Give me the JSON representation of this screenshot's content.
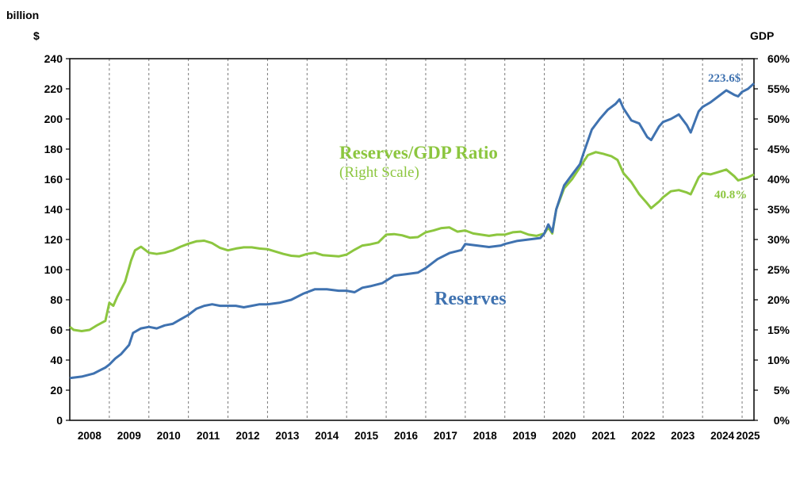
{
  "chart_data": {
    "type": "line",
    "left_axis": {
      "unit_line1": "billion",
      "unit_line2": "$",
      "ylim": [
        0,
        240
      ],
      "ticks": [
        "0",
        "20",
        "40",
        "60",
        "80",
        "100",
        "120",
        "140",
        "160",
        "180",
        "200",
        "220",
        "240"
      ]
    },
    "right_axis": {
      "unit": "GDP",
      "ylim": [
        0,
        60
      ],
      "ticks": [
        "0%",
        "5%",
        "10%",
        "15%",
        "20%",
        "25%",
        "30%",
        "35%",
        "40%",
        "45%",
        "50%",
        "55%",
        "60%"
      ]
    },
    "x_years": [
      "2008",
      "2009",
      "2010",
      "2011",
      "2012",
      "2013",
      "2014",
      "2015",
      "2016",
      "2017",
      "2018",
      "2019",
      "2020",
      "2021",
      "2022",
      "2023",
      "2024",
      "2025"
    ],
    "xlim": [
      2008.0,
      2025.3
    ],
    "colors": {
      "reserves": "#3f72b0",
      "ratio": "#8cc63f",
      "gridline": "#7a7a7a"
    },
    "series": [
      {
        "name": "Reserves",
        "axis": "left",
        "points": [
          [
            2008.0,
            28
          ],
          [
            2008.3,
            29
          ],
          [
            2008.6,
            31
          ],
          [
            2008.9,
            35
          ],
          [
            2009.0,
            37
          ],
          [
            2009.15,
            41
          ],
          [
            2009.3,
            44
          ],
          [
            2009.5,
            50
          ],
          [
            2009.6,
            58
          ],
          [
            2009.8,
            61
          ],
          [
            2010.0,
            62
          ],
          [
            2010.2,
            61
          ],
          [
            2010.4,
            63
          ],
          [
            2010.6,
            64
          ],
          [
            2010.8,
            67
          ],
          [
            2011.0,
            70
          ],
          [
            2011.2,
            74
          ],
          [
            2011.4,
            76
          ],
          [
            2011.6,
            77
          ],
          [
            2011.8,
            76
          ],
          [
            2012.0,
            76
          ],
          [
            2012.2,
            76
          ],
          [
            2012.4,
            75
          ],
          [
            2012.6,
            76
          ],
          [
            2012.8,
            77
          ],
          [
            2013.0,
            77
          ],
          [
            2013.3,
            78
          ],
          [
            2013.6,
            80
          ],
          [
            2013.9,
            84
          ],
          [
            2014.2,
            87
          ],
          [
            2014.5,
            87
          ],
          [
            2014.8,
            86
          ],
          [
            2015.0,
            86
          ],
          [
            2015.2,
            85
          ],
          [
            2015.4,
            88
          ],
          [
            2015.6,
            89
          ],
          [
            2015.9,
            91
          ],
          [
            2016.2,
            96
          ],
          [
            2016.5,
            97
          ],
          [
            2016.8,
            98
          ],
          [
            2017.0,
            101
          ],
          [
            2017.3,
            107
          ],
          [
            2017.6,
            111
          ],
          [
            2017.9,
            113
          ],
          [
            2018.0,
            117
          ],
          [
            2018.3,
            116
          ],
          [
            2018.6,
            115
          ],
          [
            2018.9,
            116
          ],
          [
            2019.0,
            117
          ],
          [
            2019.3,
            119
          ],
          [
            2019.6,
            120
          ],
          [
            2019.9,
            121
          ],
          [
            2020.0,
            124
          ],
          [
            2020.1,
            130
          ],
          [
            2020.2,
            125
          ],
          [
            2020.3,
            140
          ],
          [
            2020.5,
            156
          ],
          [
            2020.7,
            163
          ],
          [
            2020.9,
            170
          ],
          [
            2021.0,
            178
          ],
          [
            2021.2,
            193
          ],
          [
            2021.4,
            200
          ],
          [
            2021.6,
            206
          ],
          [
            2021.8,
            210
          ],
          [
            2021.9,
            213
          ],
          [
            2022.0,
            207
          ],
          [
            2022.2,
            199
          ],
          [
            2022.4,
            197
          ],
          [
            2022.6,
            188
          ],
          [
            2022.7,
            186
          ],
          [
            2022.9,
            195
          ],
          [
            2023.0,
            198
          ],
          [
            2023.2,
            200
          ],
          [
            2023.4,
            203
          ],
          [
            2023.6,
            196
          ],
          [
            2023.7,
            191
          ],
          [
            2023.9,
            205
          ],
          [
            2024.0,
            208
          ],
          [
            2024.2,
            211
          ],
          [
            2024.4,
            215
          ],
          [
            2024.6,
            219
          ],
          [
            2024.8,
            216
          ],
          [
            2024.9,
            215
          ],
          [
            2025.0,
            218
          ],
          [
            2025.15,
            220
          ],
          [
            2025.3,
            223.6
          ]
        ]
      },
      {
        "name": "Reserves/GDP Ratio",
        "axis": "right",
        "points": [
          [
            2008.0,
            15.5
          ],
          [
            2008.1,
            15.0
          ],
          [
            2008.3,
            14.8
          ],
          [
            2008.5,
            15.0
          ],
          [
            2008.7,
            15.8
          ],
          [
            2008.9,
            16.5
          ],
          [
            2009.0,
            19.5
          ],
          [
            2009.1,
            19.0
          ],
          [
            2009.2,
            20.5
          ],
          [
            2009.4,
            23.0
          ],
          [
            2009.55,
            26.5
          ],
          [
            2009.65,
            28.2
          ],
          [
            2009.8,
            28.8
          ],
          [
            2010.0,
            27.8
          ],
          [
            2010.2,
            27.6
          ],
          [
            2010.4,
            27.8
          ],
          [
            2010.6,
            28.2
          ],
          [
            2010.8,
            28.8
          ],
          [
            2011.0,
            29.3
          ],
          [
            2011.2,
            29.7
          ],
          [
            2011.4,
            29.8
          ],
          [
            2011.6,
            29.4
          ],
          [
            2011.8,
            28.6
          ],
          [
            2012.0,
            28.2
          ],
          [
            2012.2,
            28.5
          ],
          [
            2012.4,
            28.7
          ],
          [
            2012.6,
            28.7
          ],
          [
            2012.8,
            28.5
          ],
          [
            2013.0,
            28.4
          ],
          [
            2013.2,
            28.0
          ],
          [
            2013.4,
            27.6
          ],
          [
            2013.6,
            27.3
          ],
          [
            2013.8,
            27.2
          ],
          [
            2014.0,
            27.6
          ],
          [
            2014.2,
            27.8
          ],
          [
            2014.4,
            27.4
          ],
          [
            2014.6,
            27.3
          ],
          [
            2014.8,
            27.2
          ],
          [
            2015.0,
            27.5
          ],
          [
            2015.2,
            28.3
          ],
          [
            2015.4,
            29.0
          ],
          [
            2015.6,
            29.2
          ],
          [
            2015.8,
            29.5
          ],
          [
            2016.0,
            30.8
          ],
          [
            2016.2,
            30.9
          ],
          [
            2016.4,
            30.7
          ],
          [
            2016.6,
            30.3
          ],
          [
            2016.8,
            30.4
          ],
          [
            2017.0,
            31.2
          ],
          [
            2017.2,
            31.5
          ],
          [
            2017.4,
            31.9
          ],
          [
            2017.6,
            32.0
          ],
          [
            2017.8,
            31.3
          ],
          [
            2018.0,
            31.5
          ],
          [
            2018.2,
            31.0
          ],
          [
            2018.4,
            30.8
          ],
          [
            2018.6,
            30.6
          ],
          [
            2018.8,
            30.8
          ],
          [
            2019.0,
            30.8
          ],
          [
            2019.2,
            31.2
          ],
          [
            2019.4,
            31.3
          ],
          [
            2019.6,
            30.8
          ],
          [
            2019.8,
            30.6
          ],
          [
            2020.0,
            31.0
          ],
          [
            2020.1,
            32.0
          ],
          [
            2020.2,
            31.0
          ],
          [
            2020.3,
            35.0
          ],
          [
            2020.5,
            38.5
          ],
          [
            2020.7,
            40.0
          ],
          [
            2020.9,
            42.0
          ],
          [
            2021.0,
            43.0
          ],
          [
            2021.1,
            44.0
          ],
          [
            2021.3,
            44.5
          ],
          [
            2021.5,
            44.2
          ],
          [
            2021.7,
            43.8
          ],
          [
            2021.85,
            43.2
          ],
          [
            2022.0,
            41.0
          ],
          [
            2022.2,
            39.5
          ],
          [
            2022.4,
            37.5
          ],
          [
            2022.6,
            36.0
          ],
          [
            2022.7,
            35.2
          ],
          [
            2022.9,
            36.3
          ],
          [
            2023.0,
            37.0
          ],
          [
            2023.2,
            38.0
          ],
          [
            2023.4,
            38.2
          ],
          [
            2023.6,
            37.8
          ],
          [
            2023.7,
            37.5
          ],
          [
            2023.9,
            40.3
          ],
          [
            2024.0,
            41.0
          ],
          [
            2024.2,
            40.8
          ],
          [
            2024.4,
            41.2
          ],
          [
            2024.6,
            41.6
          ],
          [
            2024.8,
            40.5
          ],
          [
            2024.9,
            39.8
          ],
          [
            2025.0,
            40.0
          ],
          [
            2025.15,
            40.3
          ],
          [
            2025.3,
            40.8
          ]
        ]
      }
    ],
    "annotations": {
      "ratio_title": "Reserves/GDP Ratio",
      "ratio_subtitle": "(Right Scale)",
      "reserves_label": "Reserves",
      "reserves_end": "223.6$",
      "ratio_end": "40.8%"
    },
    "grid": "vertical dashed lines at year boundaries"
  }
}
